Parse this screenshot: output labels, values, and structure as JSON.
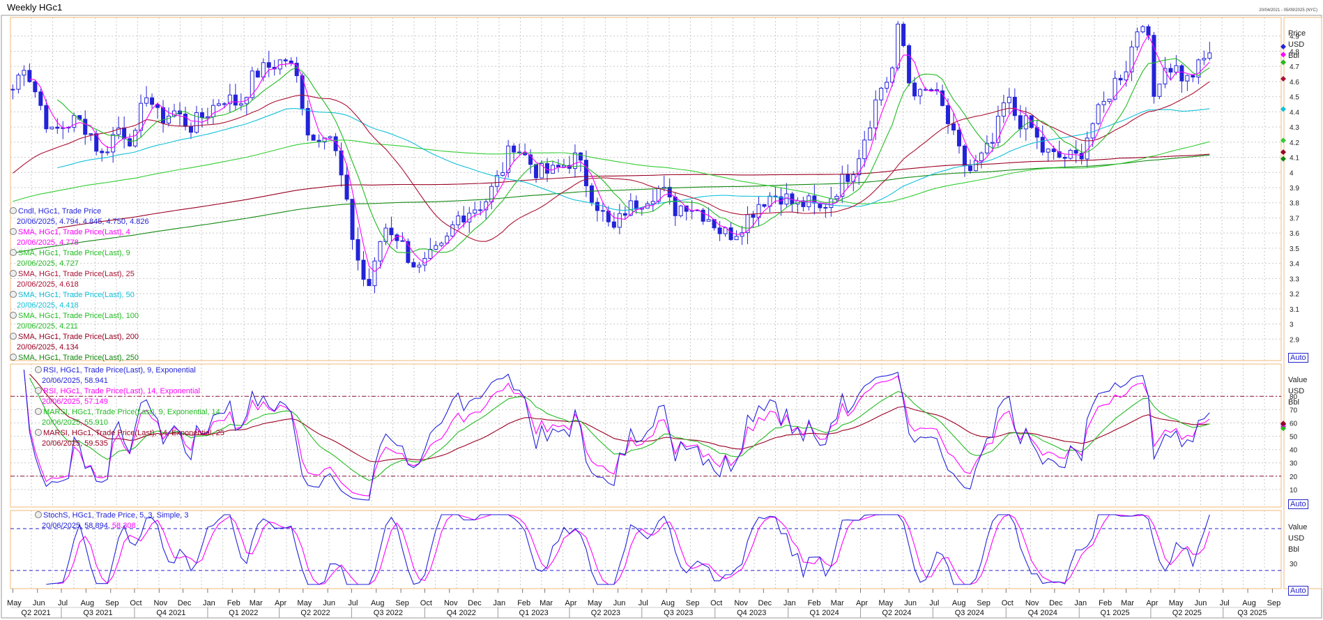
{
  "window": {
    "title": "Weekly HGc1",
    "date_range": "20/04/2021 - 05/09/2025 (NYC)"
  },
  "colors": {
    "candle": "#2323d8",
    "sma4": "#ff00ff",
    "sma9": "#22bb22",
    "sma25": "#aa1133",
    "sma50": "#11c0d8",
    "sma100": "#33cc33",
    "sma200": "#990022",
    "sma250": "#118811",
    "rsi9": "#2323d8",
    "rsi14": "#ff00ff",
    "marsi9": "#22bb22",
    "marsi14": "#990022",
    "stoch_k": "#2323d8",
    "stoch_d": "#ff00ff"
  },
  "price_panel": {
    "axis_unit": [
      "Price",
      "USD",
      "Bbl"
    ],
    "auto_label": "Auto",
    "legend": [
      {
        "name": "Cndl, HGc1, Trade Price",
        "value": "20/06/2025, 4.794, 4.845, 4.750, 4.826",
        "color": "#2323d8"
      },
      {
        "name": "SMA, HGc1, Trade Price(Last),  4",
        "value": "20/06/2025, 4.778",
        "color": "#ff00ff"
      },
      {
        "name": "SMA, HGc1, Trade Price(Last),  9",
        "value": "20/06/2025, 4.727",
        "color": "#22bb22"
      },
      {
        "name": "SMA, HGc1, Trade Price(Last),  25",
        "value": "20/06/2025, 4.618",
        "color": "#aa1133"
      },
      {
        "name": "SMA, HGc1, Trade Price(Last),  50",
        "value": "20/06/2025, 4.418",
        "color": "#11c0d8"
      },
      {
        "name": "SMA, HGc1, Trade Price(Last),  100",
        "value": "20/06/2025, 4.211",
        "color": "#22bb22"
      },
      {
        "name": "SMA, HGc1, Trade Price(Last),  200",
        "value": "20/06/2025, 4.134",
        "color": "#990022"
      },
      {
        "name": "SMA, HGc1, Trade Price(Last),  250",
        "value": "",
        "color": "#118811"
      }
    ]
  },
  "rsi_panel": {
    "axis_unit": [
      "Value",
      "USD",
      "Bbl"
    ],
    "auto_label": "Auto",
    "legend": [
      {
        "name": "RSI, HGc1, Trade Price(Last),  9, Exponential",
        "value": "20/06/2025, 58.941",
        "color": "#2323d8"
      },
      {
        "name": "RSI, HGc1, Trade Price(Last),  14, Exponential",
        "value": "20/06/2025, 57.149",
        "color": "#ff00ff"
      },
      {
        "name": "MARSI, HGc1, Trade Price(Last),  9, Exponential, 14",
        "value": "20/06/2025, 55.910",
        "color": "#22bb22"
      },
      {
        "name": "MARSI, HGc1, Trade Price(Last),  14, Exponential, 25",
        "value": "20/06/2025, 59.535",
        "color": "#990022"
      }
    ]
  },
  "stoch_panel": {
    "axis_unit": [
      "Value",
      "USD",
      "Bbl"
    ],
    "auto_label": "Auto",
    "legend": [
      {
        "name": "StochS, HGc1, Trade Price,  5, 3, Simple, 3",
        "value": "20/06/2025, 58.894,",
        "value2": "58.308",
        "color": "#2323d8",
        "color2": "#ff00ff"
      }
    ]
  },
  "chart_data": [
    {
      "type": "candlestick",
      "title": "Weekly HGc1",
      "ylim": [
        2.8,
        5.0
      ],
      "y_ticks": [
        "4.9",
        "4.8",
        "4.7",
        "4.6",
        "4.5",
        "4.4",
        "4.3",
        "4.2",
        "4.1",
        "4",
        "3.9",
        "3.8",
        "3.7",
        "3.6",
        "3.5",
        "3.4",
        "3.3",
        "3.2",
        "3.1",
        "3",
        "2.9"
      ],
      "x_month_labels": [
        "May",
        "Jun",
        "Jul",
        "Aug",
        "Sep",
        "Oct",
        "Nov",
        "Dec",
        "Jan",
        "Feb",
        "Mar",
        "Apr",
        "May",
        "Jun",
        "Jul",
        "Aug",
        "Sep",
        "Oct",
        "Nov",
        "Dec",
        "Jan",
        "Feb",
        "Mar",
        "Apr",
        "May",
        "Jun",
        "Jul",
        "Aug",
        "Sep",
        "Oct",
        "Nov",
        "Dec",
        "Jan",
        "Feb",
        "Mar",
        "Apr",
        "May",
        "Jun",
        "Jul",
        "Aug",
        "Sep",
        "Oct",
        "Nov",
        "Dec",
        "Jan",
        "Feb",
        "Mar",
        "Apr",
        "May",
        "Jun",
        "Jul",
        "Aug",
        "Sep"
      ],
      "x_quarter_labels": [
        "Q2 2021",
        "Q3 2021",
        "Q4 2021",
        "Q1 2022",
        "Q2 2022",
        "Q3 2022",
        "Q4 2022",
        "Q1 2023",
        "Q2 2023",
        "Q3 2023",
        "Q4 2023",
        "Q1 2024",
        "Q2 2024",
        "Q3 2024",
        "Q4 2024",
        "Q1 2025",
        "Q2 2025",
        "Q3 2025"
      ],
      "close_anchors": [
        [
          "2021-05-01",
          4.55
        ],
        [
          "2021-05-15",
          4.72
        ],
        [
          "2021-06-01",
          4.5
        ],
        [
          "2021-06-18",
          4.25
        ],
        [
          "2021-07-01",
          4.3
        ],
        [
          "2021-07-20",
          4.35
        ],
        [
          "2021-08-05",
          4.28
        ],
        [
          "2021-08-20",
          4.1
        ],
        [
          "2021-09-10",
          4.3
        ],
        [
          "2021-10-01",
          4.2
        ],
        [
          "2021-10-15",
          4.55
        ],
        [
          "2021-11-01",
          4.35
        ],
        [
          "2021-11-20",
          4.4
        ],
        [
          "2021-12-10",
          4.3
        ],
        [
          "2022-01-01",
          4.4
        ],
        [
          "2022-01-20",
          4.5
        ],
        [
          "2022-02-10",
          4.45
        ],
        [
          "2022-03-01",
          4.65
        ],
        [
          "2022-03-20",
          4.7
        ],
        [
          "2022-04-10",
          4.75
        ],
        [
          "2022-04-25",
          4.6
        ],
        [
          "2022-05-10",
          4.2
        ],
        [
          "2022-06-01",
          4.3
        ],
        [
          "2022-06-15",
          4.05
        ],
        [
          "2022-07-01",
          3.6
        ],
        [
          "2022-07-15",
          3.3
        ],
        [
          "2022-07-25",
          3.25
        ],
        [
          "2022-08-10",
          3.65
        ],
        [
          "2022-08-25",
          3.6
        ],
        [
          "2022-09-10",
          3.45
        ],
        [
          "2022-09-25",
          3.35
        ],
        [
          "2022-10-10",
          3.45
        ],
        [
          "2022-10-25",
          3.5
        ],
        [
          "2022-11-10",
          3.7
        ],
        [
          "2022-11-25",
          3.75
        ],
        [
          "2022-12-15",
          3.8
        ],
        [
          "2023-01-05",
          4.0
        ],
        [
          "2023-01-20",
          4.2
        ],
        [
          "2023-02-05",
          4.1
        ],
        [
          "2023-02-20",
          4.0
        ],
        [
          "2023-03-10",
          4.0
        ],
        [
          "2023-03-25",
          4.05
        ],
        [
          "2023-04-10",
          4.1
        ],
        [
          "2023-04-25",
          3.9
        ],
        [
          "2023-05-10",
          3.75
        ],
        [
          "2023-05-25",
          3.6
        ],
        [
          "2023-06-10",
          3.75
        ],
        [
          "2023-06-25",
          3.8
        ],
        [
          "2023-07-10",
          3.85
        ],
        [
          "2023-07-25",
          3.9
        ],
        [
          "2023-08-10",
          3.75
        ],
        [
          "2023-08-25",
          3.8
        ],
        [
          "2023-09-10",
          3.75
        ],
        [
          "2023-09-25",
          3.7
        ],
        [
          "2023-10-10",
          3.6
        ],
        [
          "2023-10-25",
          3.6
        ],
        [
          "2023-11-10",
          3.7
        ],
        [
          "2023-11-25",
          3.8
        ],
        [
          "2023-12-10",
          3.85
        ],
        [
          "2023-12-25",
          3.85
        ],
        [
          "2024-01-10",
          3.78
        ],
        [
          "2024-01-25",
          3.8
        ],
        [
          "2024-02-10",
          3.75
        ],
        [
          "2024-02-25",
          3.85
        ],
        [
          "2024-03-10",
          3.95
        ],
        [
          "2024-03-25",
          4.05
        ],
        [
          "2024-04-10",
          4.3
        ],
        [
          "2024-04-25",
          4.55
        ],
        [
          "2024-05-10",
          4.65
        ],
        [
          "2024-05-20",
          5.0
        ],
        [
          "2024-06-01",
          4.6
        ],
        [
          "2024-06-15",
          4.5
        ],
        [
          "2024-06-30",
          4.55
        ],
        [
          "2024-07-15",
          4.4
        ],
        [
          "2024-08-01",
          4.15
        ],
        [
          "2024-08-15",
          4.0
        ],
        [
          "2024-09-01",
          4.1
        ],
        [
          "2024-09-15",
          4.2
        ],
        [
          "2024-10-01",
          4.5
        ],
        [
          "2024-10-15",
          4.35
        ],
        [
          "2024-11-01",
          4.3
        ],
        [
          "2024-11-15",
          4.15
        ],
        [
          "2024-12-01",
          4.1
        ],
        [
          "2024-12-15",
          4.1
        ],
        [
          "2025-01-01",
          4.1
        ],
        [
          "2025-01-15",
          4.3
        ],
        [
          "2025-02-01",
          4.45
        ],
        [
          "2025-02-15",
          4.6
        ],
        [
          "2025-03-01",
          4.7
        ],
        [
          "2025-03-15",
          4.95
        ],
        [
          "2025-03-25",
          5.05
        ],
        [
          "2025-04-05",
          4.5
        ],
        [
          "2025-04-15",
          4.7
        ],
        [
          "2025-05-01",
          4.7
        ],
        [
          "2025-05-15",
          4.6
        ],
        [
          "2025-06-01",
          4.7
        ],
        [
          "2025-06-20",
          4.83
        ]
      ]
    },
    {
      "type": "line",
      "ylim": [
        0,
        100
      ],
      "y_ticks": [
        "80",
        "70",
        "60",
        "50",
        "40",
        "30",
        "20",
        "10"
      ],
      "reference_lines": [
        80,
        20
      ]
    },
    {
      "type": "line",
      "y_ticks": [
        "30"
      ],
      "reference_lines": [
        80,
        20
      ]
    }
  ]
}
